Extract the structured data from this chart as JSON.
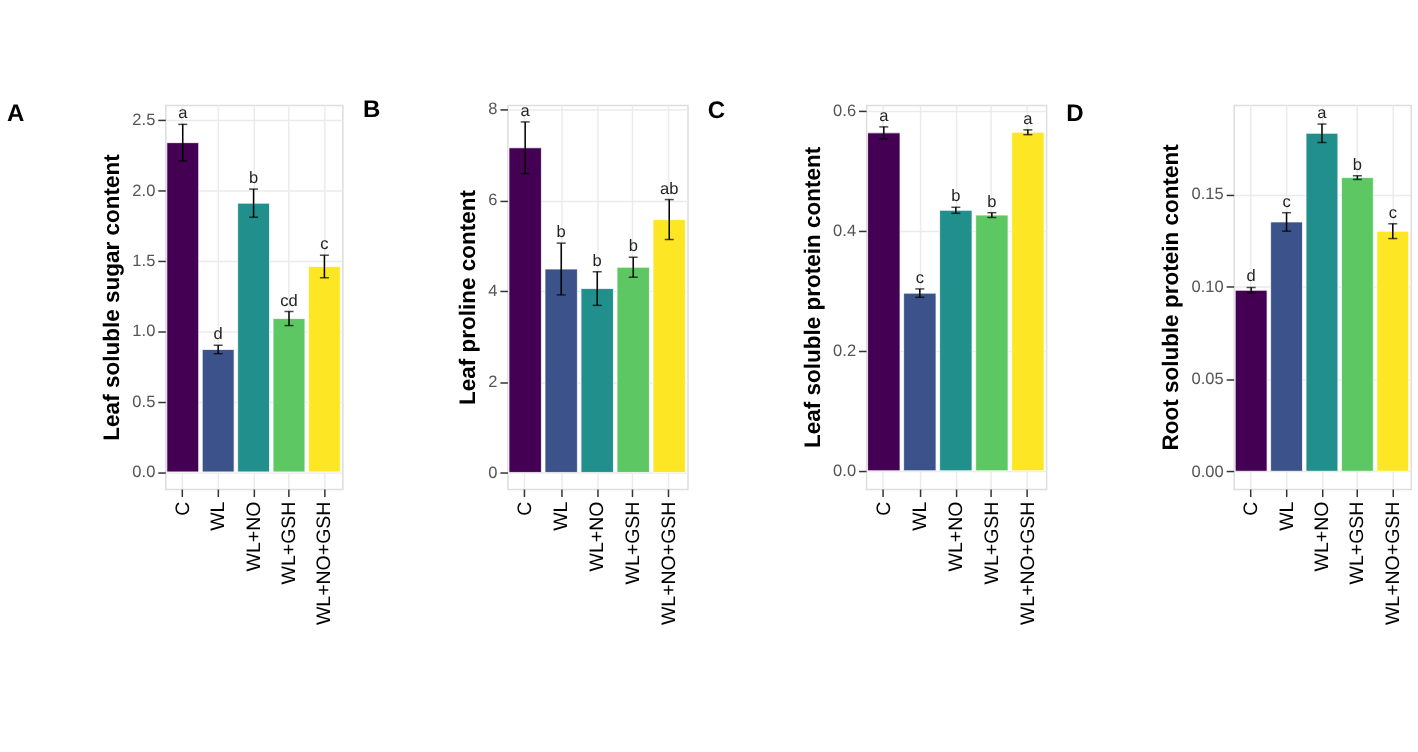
{
  "chart_data": [
    {
      "type": "bar",
      "title": "A",
      "ylabel": "Leaf soluble sugar content",
      "categories": [
        "C",
        "WL",
        "WL+NO",
        "WL+GSH",
        "WL+NO+GSH"
      ],
      "values": [
        2.34,
        0.87,
        1.91,
        1.09,
        1.46
      ],
      "errors": [
        0.13,
        0.03,
        0.1,
        0.05,
        0.08
      ],
      "colors": [
        "#440154",
        "#3b528b",
        "#21908c",
        "#5dc863",
        "#fde725"
      ],
      "ylim": [
        -0.12,
        2.61
      ],
      "yticks": [
        {
          "value": 0,
          "label": "0.0"
        },
        {
          "value": 0.5,
          "label": "0.5"
        },
        {
          "value": 1,
          "label": "1.0"
        },
        {
          "value": 1.5,
          "label": "1.5"
        },
        {
          "value": 2,
          "label": "2.0"
        },
        {
          "value": 2.5,
          "label": "2.5"
        }
      ],
      "grid": true,
      "annotations": [
        {
          "text": "a",
          "x": "C",
          "y": 2.47
        },
        {
          "text": "d",
          "x": "WL",
          "y": 0.9
        },
        {
          "text": "b",
          "x": "WL+NO",
          "y": 2.01
        },
        {
          "text": "cd",
          "x": "WL+GSH",
          "y": 1.14
        },
        {
          "text": "c",
          "x": "WL+NO+GSH",
          "y": 1.54
        }
      ]
    },
    {
      "type": "bar",
      "title": "B",
      "ylabel": "Leaf proline content",
      "categories": [
        "C",
        "WL",
        "WL+NO",
        "WL+GSH",
        "WL+NO+GSH"
      ],
      "values": [
        7.15,
        4.48,
        4.05,
        4.52,
        5.57
      ],
      "errors": [
        0.57,
        0.57,
        0.37,
        0.22,
        0.44
      ],
      "colors": [
        "#440154",
        "#3b528b",
        "#21908c",
        "#5dc863",
        "#fde725"
      ],
      "ylim": [
        -0.36,
        8.1
      ],
      "yticks": [
        0,
        2,
        4,
        6,
        8
      ],
      "grid": true,
      "annotations": [
        {
          "text": "a",
          "x": "C",
          "y": 7.72
        },
        {
          "text": "b",
          "x": "WL",
          "y": 5.05
        },
        {
          "text": "b",
          "x": "WL+NO",
          "y": 4.42
        },
        {
          "text": "b",
          "x": "WL+GSH",
          "y": 4.74
        },
        {
          "text": "ab",
          "x": "WL+NO+GSH",
          "y": 6.01
        }
      ]
    },
    {
      "type": "bar",
      "title": "C",
      "ylabel": "Leaf soluble protein content",
      "categories": [
        "C",
        "WL",
        "WL+NO",
        "WL+GSH",
        "WL+NO+GSH"
      ],
      "values": [
        0.563,
        0.296,
        0.434,
        0.426,
        0.564
      ],
      "errors": [
        0.01,
        0.007,
        0.005,
        0.004,
        0.004
      ],
      "colors": [
        "#440154",
        "#3b528b",
        "#21908c",
        "#5dc863",
        "#fde725"
      ],
      "ylim": [
        -0.03,
        0.61
      ],
      "yticks": [
        {
          "value": 0,
          "label": "0.0"
        },
        {
          "value": 0.2,
          "label": "0.2"
        },
        {
          "value": 0.4,
          "label": "0.4"
        },
        {
          "value": 0.6,
          "label": "0.6"
        }
      ],
      "grid": true,
      "annotations": [
        {
          "text": "a",
          "x": "C",
          "y": 0.573
        },
        {
          "text": "c",
          "x": "WL",
          "y": 0.303
        },
        {
          "text": "b",
          "x": "WL+NO",
          "y": 0.439
        },
        {
          "text": "b",
          "x": "WL+GSH",
          "y": 0.43
        },
        {
          "text": "a",
          "x": "WL+NO+GSH",
          "y": 0.568
        }
      ]
    },
    {
      "type": "bar",
      "title": "D",
      "ylabel": "Root soluble protein content",
      "categories": [
        "C",
        "WL",
        "WL+NO",
        "WL+GSH",
        "WL+NO+GSH"
      ],
      "values": [
        0.098,
        0.135,
        0.183,
        0.159,
        0.13
      ],
      "errors": [
        0.0015,
        0.005,
        0.005,
        0.001,
        0.004
      ],
      "colors": [
        "#440154",
        "#3b528b",
        "#21908c",
        "#5dc863",
        "#fde725"
      ],
      "ylim": [
        -0.0095,
        0.1985
      ],
      "yticks": [
        {
          "value": 0,
          "label": "0.00"
        },
        {
          "value": 0.05,
          "label": "0.05"
        },
        {
          "value": 0.1,
          "label": "0.10"
        },
        {
          "value": 0.15,
          "label": "0.15"
        }
      ],
      "grid": true,
      "annotations": [
        {
          "text": "d",
          "x": "C",
          "y": 0.0995
        },
        {
          "text": "c",
          "x": "WL",
          "y": 0.14
        },
        {
          "text": "a",
          "x": "WL+NO",
          "y": 0.188
        },
        {
          "text": "b",
          "x": "WL+GSH",
          "y": 0.16
        },
        {
          "text": "c",
          "x": "WL+NO+GSH",
          "y": 0.134
        }
      ]
    }
  ]
}
